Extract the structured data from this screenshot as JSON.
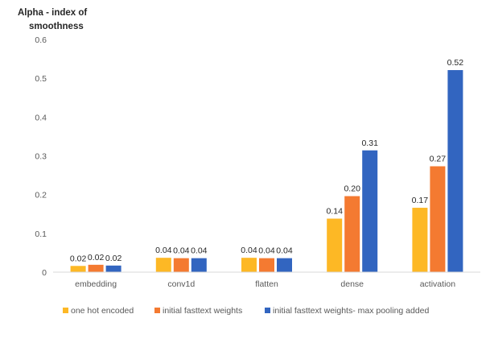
{
  "chart_data": {
    "type": "bar",
    "ylabel": "Alpha -  index of\nsmoothness",
    "ylim": [
      0,
      0.6
    ],
    "yticks": [
      {
        "value": 0,
        "label": "0"
      },
      {
        "value": 0.1,
        "label": "0.1"
      },
      {
        "value": 0.2,
        "label": "0.2"
      },
      {
        "value": 0.3,
        "label": "0.3"
      },
      {
        "value": 0.4,
        "label": "0.4"
      },
      {
        "value": 0.5,
        "label": "0.5"
      },
      {
        "value": 0.6,
        "label": "0.6"
      }
    ],
    "categories": [
      "embedding",
      "conv1d",
      "flatten",
      "dense",
      "activation"
    ],
    "series": [
      {
        "name": "one hot encoded",
        "color": "#FDB825",
        "values": [
          0.016,
          0.037,
          0.037,
          0.138,
          0.166
        ],
        "labels": [
          "0.02",
          "0.04",
          "0.04",
          "0.14",
          "0.17"
        ]
      },
      {
        "name": "initial fasttext weights",
        "color": "#F47A31",
        "values": [
          0.019,
          0.036,
          0.036,
          0.196,
          0.273
        ],
        "labels": [
          "0.02",
          "0.04",
          "0.04",
          "0.20",
          "0.27"
        ]
      },
      {
        "name": "initial fasttext weights- max pooling added",
        "color": "#3265C0",
        "values": [
          0.017,
          0.036,
          0.036,
          0.314,
          0.521
        ],
        "labels": [
          "0.02",
          "0.04",
          "0.04",
          "0.31",
          "0.52"
        ]
      }
    ],
    "grid": false,
    "legend_position": "bottom"
  }
}
